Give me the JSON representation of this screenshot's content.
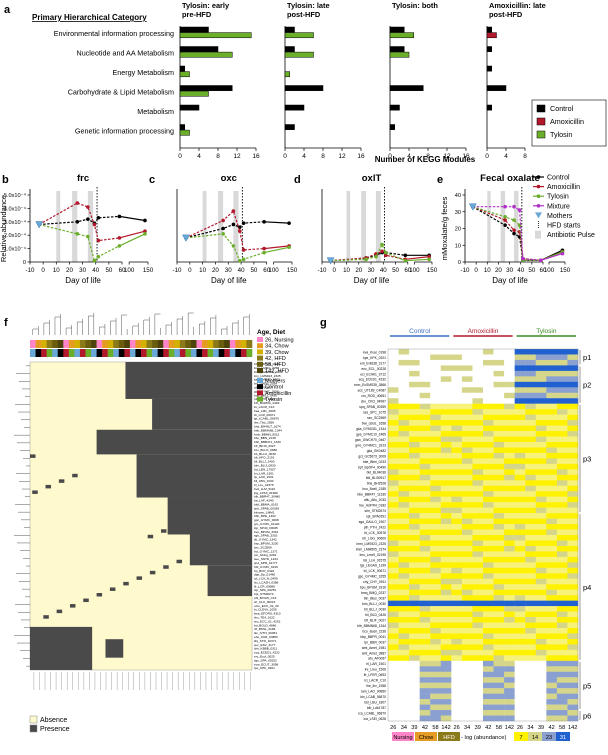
{
  "colors": {
    "control": "#000000",
    "amoxicillin": "#b2182b",
    "tylosin": "#6aae2a",
    "mixture": "#b12fc8",
    "mothers": "#6aa8d8",
    "absence": "#fffacd",
    "presence": "#4a4a4a",
    "diet_nursing": "#ff85c8",
    "diet_chow": "#e69c24",
    "diet_hfd": "#8a7a1a",
    "heat_7": "#fff200",
    "heat_14": "#d6d68a",
    "heat_23": "#8aa0d0",
    "heat_31": "#2060d0"
  },
  "panel_letters": {
    "a": "a",
    "b": "b",
    "c": "c",
    "d": "d",
    "e": "e",
    "f": "f",
    "g": "g"
  },
  "panel_a": {
    "category_header": "Primary Hierarchical Category",
    "xlabel": "Number of KEGG Modules",
    "categories": [
      "Environmental information processing",
      "Nucleotide and AA Metabolism",
      "Energy Metabolism",
      "Carbohydrate & Lipid Metabolism",
      "Metabolism",
      "Genetic information processing"
    ],
    "facets": [
      {
        "title_line1": "Tylosin: early",
        "title_line2": "pre-HFD",
        "xmax": 16,
        "ticks": [
          "0",
          "4",
          "8",
          "12",
          "16"
        ],
        "tick_values": [
          0,
          4,
          8,
          12,
          16
        ],
        "control": [
          6,
          8,
          1,
          11,
          4,
          1
        ],
        "amoxicillin": [
          0,
          0,
          0,
          0,
          0,
          0
        ],
        "tylosin": [
          15,
          11,
          2,
          6,
          0,
          2
        ]
      },
      {
        "title_line1": "Tylosin: late",
        "title_line2": "post-HFD",
        "xmax": 16,
        "ticks": [
          "0",
          "4",
          "8",
          "12",
          "16"
        ],
        "tick_values": [
          0,
          4,
          8,
          12,
          16
        ],
        "control": [
          2,
          2,
          0,
          8,
          4,
          2
        ],
        "amoxicillin": [
          0,
          0,
          0,
          0,
          0,
          0
        ],
        "tylosin": [
          6,
          6,
          1,
          0,
          0,
          0
        ]
      },
      {
        "title_line1": "Tylosin: both",
        "title_line2": "",
        "xmax": 16,
        "ticks": [
          "0",
          "4",
          "8",
          "12",
          "16"
        ],
        "tick_values": [
          0,
          4,
          8,
          12,
          16
        ],
        "control": [
          3,
          3,
          0,
          7,
          2,
          1
        ],
        "amoxicillin": [
          0,
          0,
          0,
          0,
          0,
          0
        ],
        "tylosin": [
          5,
          4,
          0,
          0,
          0,
          0
        ]
      },
      {
        "title_line1": "Amoxicillin: late",
        "title_line2": "post-HFD",
        "xmax": 8,
        "ticks": [
          "0",
          "4",
          "8"
        ],
        "tick_values": [
          0,
          4,
          8
        ],
        "control": [
          1,
          1,
          1,
          4,
          1,
          0
        ],
        "amoxicillin": [
          2,
          0,
          0,
          0,
          0,
          0
        ],
        "tylosin": [
          0,
          0,
          0,
          0,
          0,
          0
        ]
      }
    ],
    "legend": [
      "Control",
      "Amoxicillin",
      "Tylosin"
    ]
  },
  "chart_data": [
    {
      "type": "line",
      "panel": "b",
      "title": "frc",
      "ylabel": "Relative abundance",
      "xlabel": "Day of life",
      "yticks": [
        "5.0x10⁻⁴",
        "4.0x10⁻⁴",
        "3.0x10⁻⁴",
        "2.0x10⁻⁴",
        "1.0x10⁻⁴",
        "0"
      ],
      "ytick_values": [
        0.0005,
        0.0004,
        0.0003,
        0.0002,
        0.0001,
        0
      ],
      "ylim": [
        0,
        0.0005
      ],
      "series": [
        {
          "name": "Control",
          "x": [
            -3,
            26,
            34,
            39,
            42,
            58,
            142
          ],
          "y": [
            0.00028,
            0.0003,
            0.00032,
            0.00029,
            0.00033,
            0.00034,
            0.00031
          ]
        },
        {
          "name": "Amoxicillin",
          "x": [
            -3,
            26,
            34,
            39,
            42,
            58,
            142
          ],
          "y": [
            0.00028,
            0.00044,
            0.00041,
            0.00028,
            0.00016,
            0.00018,
            0.00023
          ]
        },
        {
          "name": "Tylosin",
          "x": [
            -3,
            26,
            34,
            39,
            42,
            58,
            142
          ],
          "y": [
            0.00028,
            0.00021,
            0.00019,
            1e-05,
            4e-05,
            0.00012,
            0.00021
          ]
        }
      ]
    },
    {
      "type": "line",
      "panel": "c",
      "title": "oxc",
      "xlabel": "Day of life",
      "ylim": [
        0,
        0.0005
      ],
      "series": [
        {
          "name": "Control",
          "x": [
            -3,
            26,
            34,
            39,
            42,
            58,
            142
          ],
          "y": [
            0.00018,
            0.00025,
            0.00028,
            0.00026,
            0.00029,
            0.0003,
            0.00029
          ]
        },
        {
          "name": "Amoxicillin",
          "x": [
            -3,
            26,
            34,
            39,
            42,
            58,
            142
          ],
          "y": [
            0.00018,
            0.00031,
            0.00038,
            0.00023,
            9e-05,
            0.0001,
            0.00012
          ]
        },
        {
          "name": "Tylosin",
          "x": [
            -3,
            26,
            34,
            39,
            42,
            58,
            142
          ],
          "y": [
            0.00018,
            0.00021,
            0.00012,
            1e-05,
            2e-05,
            7e-05,
            0.00011
          ]
        }
      ]
    },
    {
      "type": "line",
      "panel": "d",
      "title": "oxlT",
      "xlabel": "Day of life",
      "ylim": [
        0,
        0.0005
      ],
      "series": [
        {
          "name": "Control",
          "x": [
            -3,
            26,
            34,
            39,
            42,
            58,
            142
          ],
          "y": [
            1e-05,
            3e-05,
            5e-05,
            7e-05,
            7e-05,
            5e-05,
            5e-05
          ]
        },
        {
          "name": "Amoxicillin",
          "x": [
            -3,
            26,
            34,
            39,
            42,
            58,
            142
          ],
          "y": [
            1e-05,
            3e-05,
            6e-05,
            8e-05,
            5e-05,
            2e-05,
            4e-05
          ]
        },
        {
          "name": "Tylosin",
          "x": [
            -3,
            26,
            34,
            39,
            42,
            58,
            142
          ],
          "y": [
            1e-05,
            2e-05,
            4e-05,
            0.00013,
            7e-05,
            1e-05,
            2e-05
          ]
        }
      ]
    },
    {
      "type": "line",
      "panel": "e",
      "title": "Fecal oxalate",
      "ylabel": "mMoxalate/g feces",
      "xlabel": "Day of life",
      "yticks": [
        "40",
        "30",
        "20",
        "10",
        "0"
      ],
      "ytick_values": [
        40,
        30,
        20,
        10,
        0
      ],
      "ylim": [
        0,
        40
      ],
      "series": [
        {
          "name": "Control",
          "x": [
            -3,
            26,
            34,
            39,
            42,
            58,
            142
          ],
          "y": [
            33,
            22,
            17,
            15,
            1,
            1,
            7
          ]
        },
        {
          "name": "Amoxicillin",
          "x": [
            -3,
            26,
            34,
            39,
            42,
            58,
            142
          ],
          "y": [
            33,
            25,
            19,
            18,
            2,
            1,
            6
          ]
        },
        {
          "name": "Tylosin",
          "x": [
            -3,
            26,
            34,
            39,
            42,
            58,
            142
          ],
          "y": [
            33,
            27,
            25,
            22,
            1,
            1,
            6
          ]
        },
        {
          "name": "Mixture",
          "x": [
            -3,
            26,
            34,
            39,
            42,
            58,
            142
          ],
          "y": [
            33,
            33,
            33,
            31,
            2,
            1,
            5
          ]
        },
        {
          "name": "Mothers",
          "x": [
            -3
          ],
          "y": [
            33
          ]
        }
      ],
      "legend": [
        "Control",
        "Amoxicillin",
        "Tylosin",
        "Mixture",
        "Mothers",
        "HFD starts",
        "Antibiotic Pulse"
      ]
    }
  ],
  "line_axes": {
    "xticks": [
      "-10",
      "0",
      "10",
      "20",
      "30",
      "40",
      "50",
      "60",
      "100",
      "150"
    ],
    "xtick_values": [
      -10,
      0,
      10,
      20,
      30,
      40,
      50,
      60,
      100,
      150
    ]
  },
  "panel_f": {
    "legend_title": "Age, Diet",
    "age_legend": [
      "26, Nursing",
      "34, Chow",
      "39, Chow",
      "42, HFD",
      "58, HFD",
      "142, HFD"
    ],
    "group_legend": [
      "Mothers",
      "Control",
      "Amoxicillin",
      "Tylosin"
    ],
    "bottom_legend": [
      "Absence",
      "Presence"
    ],
    "row_labels": [
      "bbi_LMHCC_0373",
      "lmm_LMRG_3258",
      "lmm_LMM505_2374",
      "lmy_LMS923_2325",
      "kaz_LMOLO_1022",
      "lmj_LMDH_2034",
      "afu_AF1067",
      "gpc_GYMC_2098",
      "bce_BBL1_0426",
      "pth_PTH_3422",
      "bth_BtsPRA_0182",
      "lis_LACR_C10",
      "baa_LM1_3005",
      "lzi_LCR_00971",
      "lgi_LCABL_06870",
      "tbe_Tbd_1958",
      "bhd_BH46LT_1674",
      "bbb_BBMN68_1344",
      "bmb_BBMN_0012",
      "bbc_BBN_2138",
      "bbh_BBB471_1330",
      "bfr_BF19_0027",
      "bcv_BLLO_0680",
      "bb_BLLO_0030",
      "hft_HFO_2191",
      "bll_BLLJ_1400",
      "blm_BLIJ_0030",
      "bd_LBN_17057",
      "bn_LAR_1501",
      "tjv_LAR_1501",
      "bll_LBN_1030",
      "bl_LLL_01575",
      "bvd_LLM_5110",
      "lpg_LPS3_01990",
      "blb_BBR47_30480",
      "btt_LAF_4340",
      "btbl_BBMA_0162",
      "zpb_SPAB_00359",
      "blmpeu_LMM1",
      "bbh_BPE_1302",
      "gpc_GYMC_0498",
      "gm_GYMC_01120",
      "ipp_SP40_00045",
      "bvu_BPUM_3316",
      "sgb_SPAB_3302",
      "tkl_GYMC_1342",
      "bsp_BPUM_3230",
      "sec_SC2569",
      "bcl_GYMC_1371",
      "ssr_Sinbg_0202",
      "see_SNTD_1234",
      "spd_SPR_42777",
      "hbf_GYMC_0415",
      "bp_BCP_0418",
      "dpp_Dp_01460",
      "tcf_LCA_N_0499",
      "lzc_LCAZH_0388",
      "lfr_LCR_00988",
      "tsp_SPA_00251",
      "bpt_STM2674",
      "pbl_BVIAS_C15",
      "cif_CLU_00216",
      "ucro_ECC_02_30",
      "bi_CLEVA_1059",
      "kwa_EFORS_4310",
      "zkx_TE4_1022",
      "teo_ECC_01_4252",
      "bd_BGLD_4866",
      "vfl_BSSL_0186",
      "tkc_IVTN_00051",
      "ebo_CKR_04860",
      "kbj_STR_10371",
      "yuc_ESV_3177",
      "chk_KBBB_0311",
      "ecq_ECED1_4232",
      "erc_Ecol_0025",
      "sgs_SPA_00252",
      "ecw_ECUT_3098",
      "tpe_KPK_0201"
    ],
    "col_labels": [
      "26a",
      "26b",
      "26c",
      "34a",
      "34b",
      "34c",
      "39a",
      "39b",
      "39c",
      "42a",
      "42b",
      "42c",
      "58a",
      "58b",
      "58c",
      "142a",
      "142b",
      "142c"
    ]
  },
  "panel_g": {
    "group_titles": [
      "Control",
      "Amoxicillin",
      "Tylosin"
    ],
    "section_labels": [
      "p1",
      "p2",
      "p3",
      "p4",
      "p5",
      "p6"
    ],
    "col_labels": [
      "26",
      "34",
      "39",
      "42",
      "58",
      "142",
      "26",
      "34",
      "39",
      "42",
      "58",
      "142",
      "26",
      "34",
      "39",
      "42",
      "58",
      "142"
    ],
    "row_labels": [
      "kva_Kvar_0198",
      "kpe_KPK_0201",
      "ent_Ent638_3177",
      "enc_ECL_00228",
      "eci_ECIAI1_3712",
      "ecq_ECED1_4232",
      "ecm_EcSMS35_3866",
      "ecs_UT189_C4087",
      "cro_ROD_40651",
      "cko_CKO_04997",
      "spq_SPAB_00359",
      "ses_SPC_1075",
      "sec_SC2569",
      "bwi_LBUL_1658",
      "gka_GYMC81_1344",
      "gya_GYMC10_2465",
      "gwc_GWCH70_0467",
      "gmc_GY4MC1_3313",
      "gka_GK0482",
      "gct_GC5673_3009",
      "bbe_Bbei_0233",
      "bpf_BpOF4_00490",
      "bld_BL04036",
      "bld_BLi00917",
      "bha_BH2528",
      "bco_Bcell_2185",
      "bbe_BBR47_11330",
      "aflu_Aflu_2033",
      "fee_AciPR4_0182",
      "stm_STM2674",
      "spt_SPA0291",
      "sga_GALLO_1907",
      "pth_PTH_2422",
      "lrt_LCK_00578",
      "lrb_LGG_00600",
      "lmm_LMS923_2325",
      "lmm_LMM505_2374",
      "lmo_Lmo9_02195",
      "lisi_LLH_01575",
      "lgs_LEGAS_1199",
      "lcl_LCK_00671",
      "gpc_GY4MC_3255",
      "chy_CHY_0911",
      "bpu_BPUM_3316",
      "bmq_BMQ_0237",
      "btn_Btus_0037",
      "bim_BLLJ_0030",
      "bll_BLLJ_0030",
      "bll_BLD_0426",
      "blf_BLIF_0027",
      "blb_BBMN68_1344",
      "bco_Bcell_2236",
      "bbp_BBPR_0041",
      "tpr_BBR_0037",
      "amt_Amet_1981",
      "amt_Amet_3887",
      "afu_AF0067",
      "lrl_LAR_1501",
      "lre_Lreu_1506",
      "lfr_LFER_0693",
      "lci_LACR_C10",
      "lhe_lhv_1958",
      "lam_LAO_00850",
      "ldn_LCAB_06870",
      "ldd_LBU_1807",
      "ldb_Ldb1787",
      "lca_LCABL_06870",
      "lca_LSEI_0628"
    ],
    "legend_diet": [
      "Nursing",
      "Chow",
      "HFD"
    ],
    "legend_scale_title": "- log (abundance)",
    "legend_scale": [
      "7",
      "14",
      "23",
      "31"
    ]
  }
}
